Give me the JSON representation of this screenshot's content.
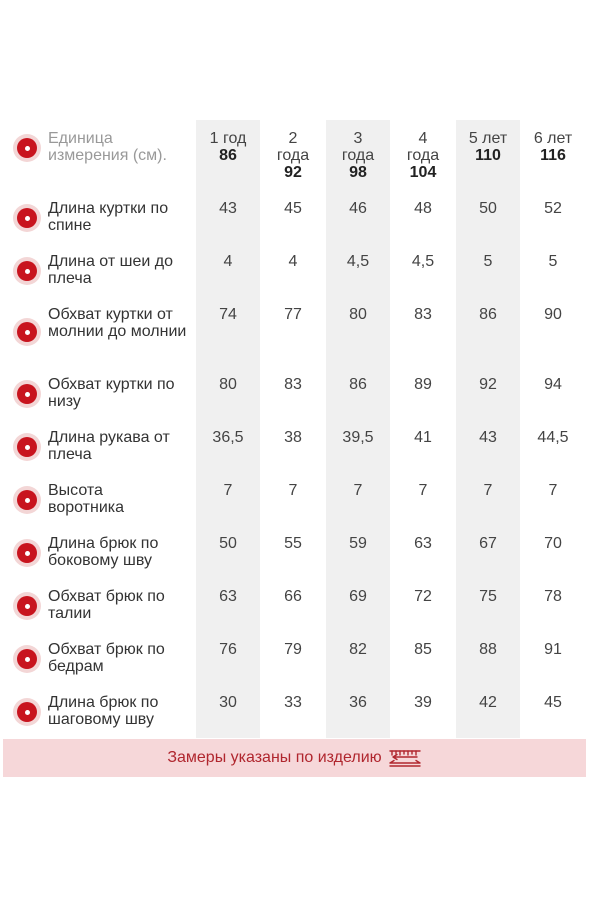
{
  "header": {
    "unit_label": "Единица измерения (см).",
    "columns": [
      {
        "age": "1 год",
        "size": "86"
      },
      {
        "age": "2 года",
        "size": "92"
      },
      {
        "age": "3 года",
        "size": "98"
      },
      {
        "age": "4 года",
        "size": "104"
      },
      {
        "age": "5 лет",
        "size": "110"
      },
      {
        "age": "6 лет",
        "size": "116"
      }
    ]
  },
  "rows": [
    {
      "label": "Длина куртки по спине",
      "values": [
        "43",
        "45",
        "46",
        "48",
        "50",
        "52"
      ]
    },
    {
      "label": "Длина от шеи до плеча",
      "values": [
        "4",
        "4",
        "4,5",
        "4,5",
        "5",
        "5"
      ]
    },
    {
      "label": "Обхват куртки от молнии до молнии",
      "values": [
        "74",
        "77",
        "80",
        "83",
        "86",
        "90"
      ]
    },
    {
      "label": "Обхват куртки по низу",
      "values": [
        "80",
        "83",
        "86",
        "89",
        "92",
        "94"
      ]
    },
    {
      "label": "Длина рукава от плеча",
      "values": [
        "36,5",
        "38",
        "39,5",
        "41",
        "43",
        "44,5"
      ]
    },
    {
      "label": "Высота воротника",
      "values": [
        "7",
        "7",
        "7",
        "7",
        "7",
        "7"
      ]
    },
    {
      "label": "Длина брюк по боковому шву",
      "values": [
        "50",
        "55",
        "59",
        "63",
        "67",
        "70"
      ]
    },
    {
      "label": "Обхват брюк по талии",
      "values": [
        "63",
        "66",
        "69",
        "72",
        "75",
        "78"
      ]
    },
    {
      "label": "Обхват брюк по бедрам",
      "values": [
        "76",
        "79",
        "82",
        "85",
        "88",
        "91"
      ]
    },
    {
      "label": "Длина брюк по шаговому шву",
      "values": [
        "30",
        "33",
        "36",
        "39",
        "42",
        "45"
      ]
    }
  ],
  "footer": {
    "note": "Замеры указаны по изделию",
    "icon": "ruler-measure-icon"
  },
  "colors": {
    "accent": "#c8141e",
    "bullet_halo": "#f3d6d6",
    "column_shade": "#f0f0f0",
    "footer_bg": "#f6d7d9",
    "footer_text": "#b0262e"
  }
}
